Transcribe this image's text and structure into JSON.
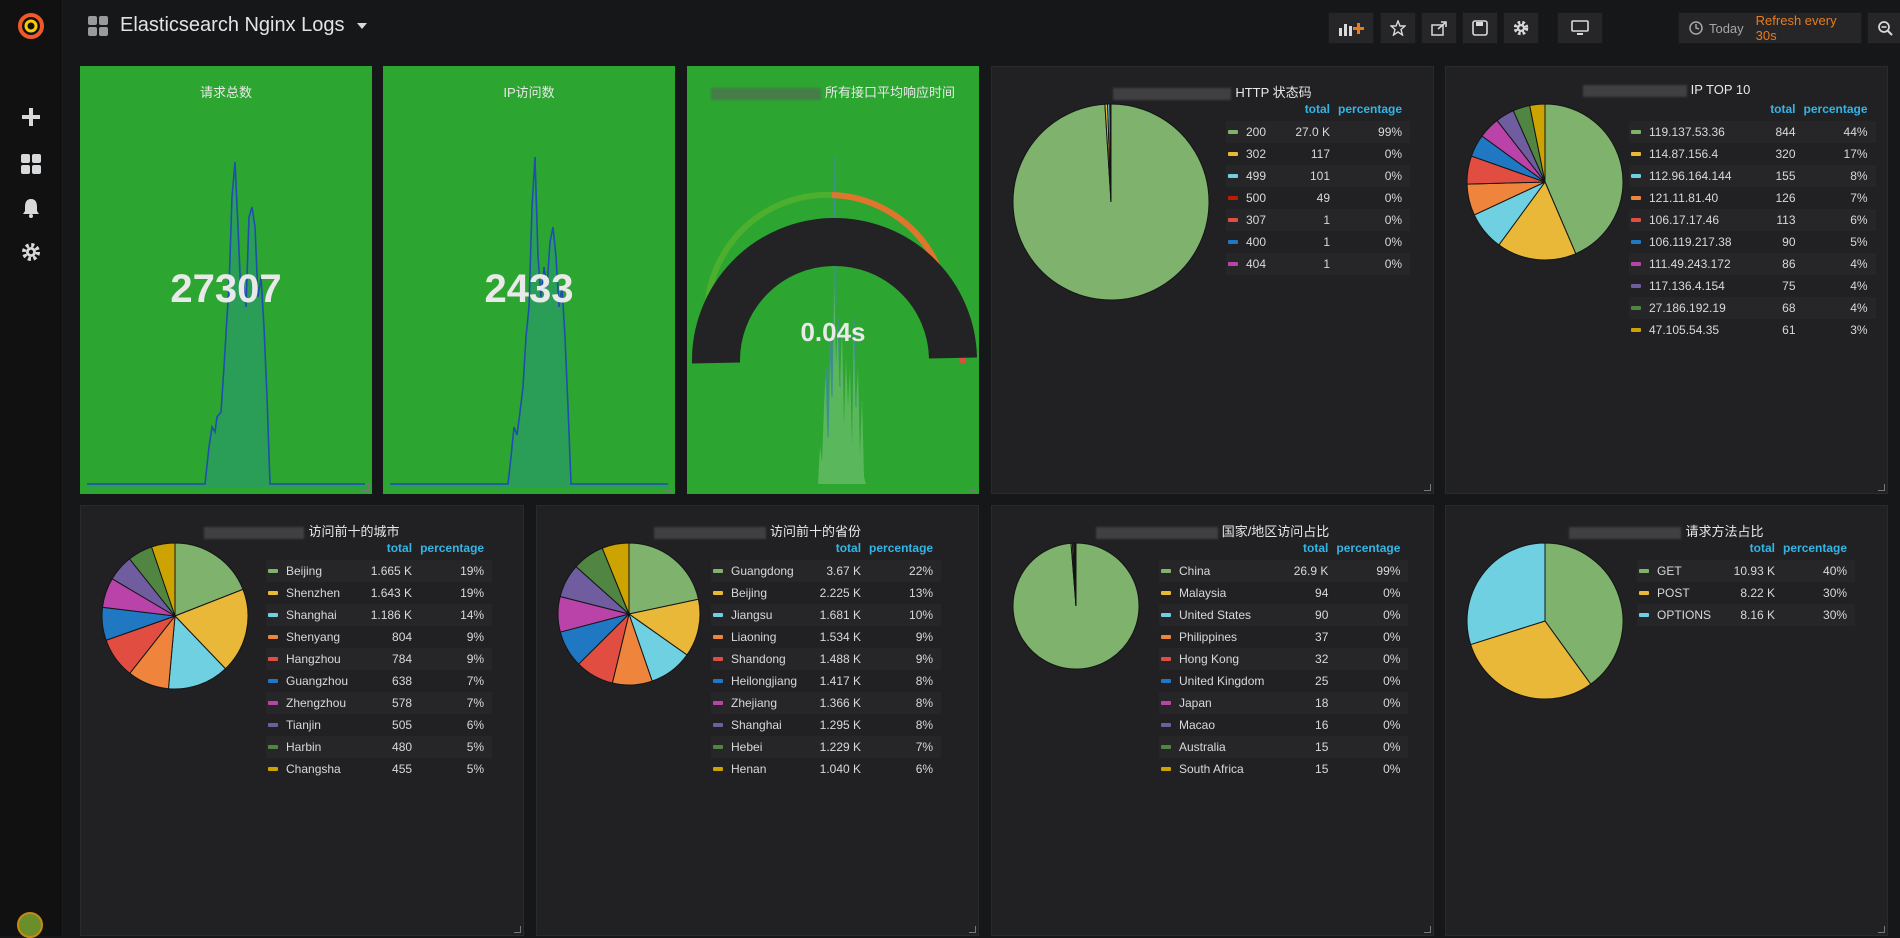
{
  "header": {
    "title": "Elasticsearch Nginx Logs",
    "time_today": "Today",
    "refresh_label": "Refresh every 30s"
  },
  "icons": {
    "logo": "grafana-logo-icon",
    "add": "plus-icon",
    "dashboards": "grid-icon",
    "alerts": "bell-icon",
    "config": "gear-icon"
  },
  "colors": {
    "green_panel": "#2ca631",
    "accent_orange": "#eb7b18",
    "legend_header": "#33b5e5"
  },
  "stat_panels": [
    {
      "title": "请求总数",
      "value": "27307"
    },
    {
      "title": "IP访问数",
      "value": "2433"
    }
  ],
  "gauge_panel": {
    "title": "所有接口平均响应时间",
    "value": "0.04s"
  },
  "legend_headers": {
    "total": "total",
    "percentage": "percentage"
  },
  "pies": [
    {
      "title": "HTTP 状态码",
      "rows": [
        {
          "label": "200",
          "total": "27.0 K",
          "pct": "99%",
          "color": "#7eb26d"
        },
        {
          "label": "302",
          "total": "117",
          "pct": "0%",
          "color": "#eab839"
        },
        {
          "label": "499",
          "total": "101",
          "pct": "0%",
          "color": "#6ed0e0"
        },
        {
          "label": "500",
          "total": "49",
          "pct": "0%",
          "color": "#bf1b00"
        },
        {
          "label": "307",
          "total": "1",
          "pct": "0%",
          "color": "#e24d42"
        },
        {
          "label": "400",
          "total": "1",
          "pct": "0%",
          "color": "#1f78c1"
        },
        {
          "label": "404",
          "total": "1",
          "pct": "0%",
          "color": "#ba43a9"
        }
      ]
    },
    {
      "title": "IP TOP 10",
      "rows": [
        {
          "label": "119.137.53.36",
          "total": "844",
          "pct": "44%",
          "color": "#7eb26d"
        },
        {
          "label": "114.87.156.4",
          "total": "320",
          "pct": "17%",
          "color": "#eab839"
        },
        {
          "label": "112.96.164.144",
          "total": "155",
          "pct": "8%",
          "color": "#6ed0e0"
        },
        {
          "label": "121.11.81.40",
          "total": "126",
          "pct": "7%",
          "color": "#ef843c"
        },
        {
          "label": "106.17.17.46",
          "total": "113",
          "pct": "6%",
          "color": "#e24d42"
        },
        {
          "label": "106.119.217.38",
          "total": "90",
          "pct": "5%",
          "color": "#1f78c1"
        },
        {
          "label": "111.49.243.172",
          "total": "86",
          "pct": "4%",
          "color": "#ba43a9"
        },
        {
          "label": "117.136.4.154",
          "total": "75",
          "pct": "4%",
          "color": "#705da0"
        },
        {
          "label": "27.186.192.19",
          "total": "68",
          "pct": "4%",
          "color": "#508642"
        },
        {
          "label": "47.105.54.35",
          "total": "61",
          "pct": "3%",
          "color": "#cca300"
        }
      ]
    },
    {
      "title": "访问前十的城市",
      "rows": [
        {
          "label": "Beijing",
          "total": "1.665 K",
          "pct": "19%",
          "color": "#7eb26d"
        },
        {
          "label": "Shenzhen",
          "total": "1.643 K",
          "pct": "19%",
          "color": "#eab839"
        },
        {
          "label": "Shanghai",
          "total": "1.186 K",
          "pct": "14%",
          "color": "#6ed0e0"
        },
        {
          "label": "Shenyang",
          "total": "804",
          "pct": "9%",
          "color": "#ef843c"
        },
        {
          "label": "Hangzhou",
          "total": "784",
          "pct": "9%",
          "color": "#e24d42"
        },
        {
          "label": "Guangzhou",
          "total": "638",
          "pct": "7%",
          "color": "#1f78c1"
        },
        {
          "label": "Zhengzhou",
          "total": "578",
          "pct": "7%",
          "color": "#ba43a9"
        },
        {
          "label": "Tianjin",
          "total": "505",
          "pct": "6%",
          "color": "#705da0"
        },
        {
          "label": "Harbin",
          "total": "480",
          "pct": "5%",
          "color": "#508642"
        },
        {
          "label": "Changsha",
          "total": "455",
          "pct": "5%",
          "color": "#cca300"
        }
      ]
    },
    {
      "title": "访问前十的省份",
      "rows": [
        {
          "label": "Guangdong",
          "total": "3.67 K",
          "pct": "22%",
          "color": "#7eb26d"
        },
        {
          "label": "Beijing",
          "total": "2.225 K",
          "pct": "13%",
          "color": "#eab839"
        },
        {
          "label": "Jiangsu",
          "total": "1.681 K",
          "pct": "10%",
          "color": "#6ed0e0"
        },
        {
          "label": "Liaoning",
          "total": "1.534 K",
          "pct": "9%",
          "color": "#ef843c"
        },
        {
          "label": "Shandong",
          "total": "1.488 K",
          "pct": "9%",
          "color": "#e24d42"
        },
        {
          "label": "Heilongjiang",
          "total": "1.417 K",
          "pct": "8%",
          "color": "#1f78c1"
        },
        {
          "label": "Zhejiang",
          "total": "1.366 K",
          "pct": "8%",
          "color": "#ba43a9"
        },
        {
          "label": "Shanghai",
          "total": "1.295 K",
          "pct": "8%",
          "color": "#705da0"
        },
        {
          "label": "Hebei",
          "total": "1.229 K",
          "pct": "7%",
          "color": "#508642"
        },
        {
          "label": "Henan",
          "total": "1.040 K",
          "pct": "6%",
          "color": "#cca300"
        }
      ]
    },
    {
      "title": "国家/地区访问占比",
      "rows": [
        {
          "label": "China",
          "total": "26.9 K",
          "pct": "99%",
          "color": "#7eb26d"
        },
        {
          "label": "Malaysia",
          "total": "94",
          "pct": "0%",
          "color": "#eab839"
        },
        {
          "label": "United States",
          "total": "90",
          "pct": "0%",
          "color": "#6ed0e0"
        },
        {
          "label": "Philippines",
          "total": "37",
          "pct": "0%",
          "color": "#ef843c"
        },
        {
          "label": "Hong Kong",
          "total": "32",
          "pct": "0%",
          "color": "#e24d42"
        },
        {
          "label": "United Kingdom",
          "total": "25",
          "pct": "0%",
          "color": "#1f78c1"
        },
        {
          "label": "Japan",
          "total": "18",
          "pct": "0%",
          "color": "#ba43a9"
        },
        {
          "label": "Macao",
          "total": "16",
          "pct": "0%",
          "color": "#705da0"
        },
        {
          "label": "Australia",
          "total": "15",
          "pct": "0%",
          "color": "#508642"
        },
        {
          "label": "South Africa",
          "total": "15",
          "pct": "0%",
          "color": "#cca300"
        }
      ]
    },
    {
      "title": "请求方法占比",
      "rows": [
        {
          "label": "GET",
          "total": "10.93 K",
          "pct": "40%",
          "color": "#7eb26d"
        },
        {
          "label": "POST",
          "total": "8.22 K",
          "pct": "30%",
          "color": "#eab839"
        },
        {
          "label": "OPTIONS",
          "total": "8.16 K",
          "pct": "30%",
          "color": "#6ed0e0"
        }
      ]
    }
  ]
}
